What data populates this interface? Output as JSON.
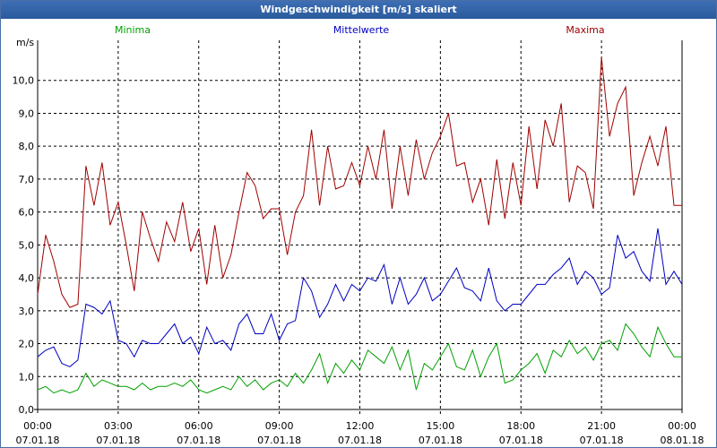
{
  "window": {
    "title": "Windgeschwindigkeit [m/s] skaliert"
  },
  "colors": {
    "min": "#00a000",
    "mean": "#0000c0",
    "max": "#a00000",
    "grid": "#000000"
  },
  "chart_data": {
    "type": "line",
    "title": "Windgeschwindigkeit [m/s] skaliert",
    "ylabel": "m/s",
    "ylim": [
      0,
      11
    ],
    "yticks": [
      0,
      1,
      2,
      3,
      4,
      5,
      6,
      7,
      8,
      9,
      10
    ],
    "ytick_labels": [
      "0,0",
      "1,0",
      "2,0",
      "3,0",
      "4,0",
      "5,0",
      "6,0",
      "7,0",
      "8,0",
      "9,0",
      "10,0"
    ],
    "xlim": [
      0,
      24
    ],
    "xticks": [
      0,
      3,
      6,
      9,
      12,
      15,
      18,
      21,
      24
    ],
    "xtick_time": [
      "00:00",
      "03:00",
      "06:00",
      "09:00",
      "12:00",
      "15:00",
      "18:00",
      "21:00",
      "00:00"
    ],
    "xtick_date": [
      "07.01.18",
      "07.01.18",
      "07.01.18",
      "07.01.18",
      "07.01.18",
      "07.01.18",
      "07.01.18",
      "07.01.18",
      "08.01.18"
    ],
    "legend": [
      "Minima",
      "Mittelwerte",
      "Maxima"
    ],
    "series": [
      {
        "name": "Minima",
        "color": "#00a000",
        "x": [
          0.0,
          0.3,
          0.6,
          0.9,
          1.2,
          1.5,
          1.8,
          2.1,
          2.4,
          2.7,
          3.0,
          3.3,
          3.6,
          3.9,
          4.2,
          4.5,
          4.8,
          5.1,
          5.4,
          5.7,
          6.0,
          6.3,
          6.6,
          6.9,
          7.2,
          7.5,
          7.8,
          8.1,
          8.4,
          8.7,
          9.0,
          9.3,
          9.6,
          9.9,
          10.2,
          10.5,
          10.8,
          11.1,
          11.4,
          11.7,
          12.0,
          12.3,
          12.6,
          12.9,
          13.2,
          13.5,
          13.8,
          14.1,
          14.4,
          14.7,
          15.0,
          15.3,
          15.6,
          15.9,
          16.2,
          16.5,
          16.8,
          17.1,
          17.4,
          17.7,
          18.0,
          18.3,
          18.6,
          18.9,
          19.2,
          19.5,
          19.8,
          20.1,
          20.4,
          20.7,
          21.0,
          21.3,
          21.6,
          21.9,
          22.2,
          22.5,
          22.8,
          23.1,
          23.4,
          23.7,
          24.0
        ],
        "values": [
          0.6,
          0.7,
          0.5,
          0.6,
          0.5,
          0.6,
          1.1,
          0.7,
          0.9,
          0.8,
          0.7,
          0.7,
          0.6,
          0.8,
          0.6,
          0.7,
          0.7,
          0.8,
          0.7,
          0.9,
          0.6,
          0.5,
          0.6,
          0.7,
          0.6,
          1.0,
          0.7,
          0.9,
          0.6,
          0.8,
          0.9,
          0.7,
          1.1,
          0.8,
          1.2,
          1.7,
          0.8,
          1.4,
          1.1,
          1.5,
          1.2,
          1.8,
          1.6,
          1.4,
          1.9,
          1.2,
          1.8,
          0.6,
          1.4,
          1.2,
          1.6,
          2.0,
          1.3,
          1.2,
          1.8,
          1.0,
          1.6,
          2.0,
          0.8,
          0.9,
          1.2,
          1.4,
          1.7,
          1.1,
          1.8,
          1.6,
          2.1,
          1.7,
          1.9,
          1.5,
          2.0,
          2.1,
          1.8,
          2.6,
          2.3,
          1.9,
          1.6,
          2.5,
          2.0,
          1.6,
          1.6
        ]
      },
      {
        "name": "Mittelwerte",
        "color": "#0000c0",
        "x": [
          0.0,
          0.3,
          0.6,
          0.9,
          1.2,
          1.5,
          1.8,
          2.1,
          2.4,
          2.7,
          3.0,
          3.3,
          3.6,
          3.9,
          4.2,
          4.5,
          4.8,
          5.1,
          5.4,
          5.7,
          6.0,
          6.3,
          6.6,
          6.9,
          7.2,
          7.5,
          7.8,
          8.1,
          8.4,
          8.7,
          9.0,
          9.3,
          9.6,
          9.9,
          10.2,
          10.5,
          10.8,
          11.1,
          11.4,
          11.7,
          12.0,
          12.3,
          12.6,
          12.9,
          13.2,
          13.5,
          13.8,
          14.1,
          14.4,
          14.7,
          15.0,
          15.3,
          15.6,
          15.9,
          16.2,
          16.5,
          16.8,
          17.1,
          17.4,
          17.7,
          18.0,
          18.3,
          18.6,
          18.9,
          19.2,
          19.5,
          19.8,
          20.1,
          20.4,
          20.7,
          21.0,
          21.3,
          21.6,
          21.9,
          22.2,
          22.5,
          22.8,
          23.1,
          23.4,
          23.7,
          24.0
        ],
        "values": [
          1.6,
          1.8,
          1.9,
          1.4,
          1.3,
          1.5,
          3.2,
          3.1,
          2.9,
          3.3,
          2.1,
          2.0,
          1.6,
          2.1,
          2.0,
          2.0,
          2.3,
          2.6,
          2.0,
          2.2,
          1.7,
          2.5,
          2.0,
          2.1,
          1.8,
          2.6,
          2.9,
          2.3,
          2.3,
          2.9,
          2.1,
          2.6,
          2.7,
          4.0,
          3.6,
          2.8,
          3.2,
          3.8,
          3.3,
          3.8,
          3.6,
          4.0,
          3.9,
          4.4,
          3.2,
          4.0,
          3.2,
          3.5,
          4.0,
          3.3,
          3.5,
          3.9,
          4.3,
          3.7,
          3.6,
          3.3,
          4.3,
          3.3,
          3.0,
          3.2,
          3.2,
          3.5,
          3.8,
          3.8,
          4.1,
          4.3,
          4.6,
          3.8,
          4.2,
          4.0,
          3.5,
          3.7,
          5.3,
          4.6,
          4.8,
          4.2,
          3.9,
          5.5,
          3.8,
          4.2,
          3.8
        ]
      },
      {
        "name": "Maxima",
        "color": "#a00000",
        "x": [
          0.0,
          0.3,
          0.6,
          0.9,
          1.2,
          1.5,
          1.8,
          2.1,
          2.4,
          2.7,
          3.0,
          3.3,
          3.6,
          3.9,
          4.2,
          4.5,
          4.8,
          5.1,
          5.4,
          5.7,
          6.0,
          6.3,
          6.6,
          6.9,
          7.2,
          7.5,
          7.8,
          8.1,
          8.4,
          8.7,
          9.0,
          9.3,
          9.6,
          9.9,
          10.2,
          10.5,
          10.8,
          11.1,
          11.4,
          11.7,
          12.0,
          12.3,
          12.6,
          12.9,
          13.2,
          13.5,
          13.8,
          14.1,
          14.4,
          14.7,
          15.0,
          15.3,
          15.6,
          15.9,
          16.2,
          16.5,
          16.8,
          17.1,
          17.4,
          17.7,
          18.0,
          18.3,
          18.6,
          18.9,
          19.2,
          19.5,
          19.8,
          20.1,
          20.4,
          20.7,
          21.0,
          21.3,
          21.6,
          21.9,
          22.2,
          22.5,
          22.8,
          23.1,
          23.4,
          23.7,
          24.0
        ],
        "values": [
          3.5,
          5.3,
          4.5,
          3.5,
          3.1,
          3.2,
          7.4,
          6.2,
          7.5,
          5.6,
          6.3,
          5.0,
          3.6,
          6.0,
          5.2,
          4.5,
          5.7,
          5.1,
          6.3,
          4.8,
          5.5,
          3.8,
          5.6,
          4.0,
          4.7,
          6.0,
          7.2,
          6.8,
          5.8,
          6.1,
          6.1,
          4.7,
          6.0,
          6.5,
          8.5,
          6.2,
          8.0,
          6.7,
          6.8,
          7.5,
          6.8,
          8.0,
          7.0,
          8.5,
          6.1,
          8.0,
          6.5,
          8.2,
          7.0,
          7.8,
          8.3,
          9.0,
          7.4,
          7.5,
          6.3,
          7.0,
          5.6,
          7.6,
          5.8,
          7.5,
          6.2,
          8.6,
          6.7,
          8.8,
          8.0,
          9.3,
          6.3,
          7.4,
          7.2,
          6.1,
          10.7,
          8.3,
          9.3,
          9.8,
          6.5,
          7.5,
          8.3,
          7.4,
          8.6,
          6.2,
          6.2
        ]
      }
    ]
  }
}
